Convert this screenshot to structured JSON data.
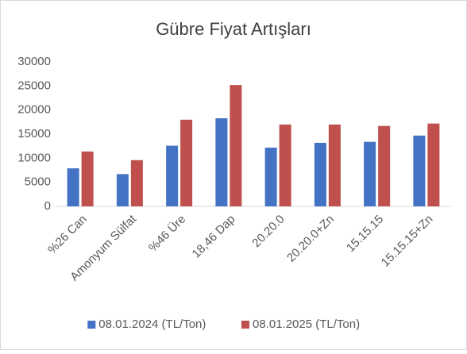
{
  "chart_data": {
    "type": "bar",
    "title": "Gübre Fiyat Artışları",
    "categories": [
      "%26 Can",
      "Amonyum Sülfat",
      "%46 Üre",
      "18,46 Dap",
      "20.20.0",
      "20.20.0+Zn",
      "15.15.15",
      "15.15.15+Zn"
    ],
    "series": [
      {
        "name": "08.01.2024 (TL/Ton)",
        "color": "#4472c4",
        "values": [
          7900,
          6700,
          12600,
          18300,
          12200,
          13200,
          13400,
          14700
        ]
      },
      {
        "name": "08.01.2025 (TL/Ton)",
        "color": "#c0504d",
        "values": [
          11400,
          9600,
          18000,
          25200,
          17000,
          17000,
          16700,
          17200
        ]
      }
    ],
    "ylim": [
      0,
      30000
    ],
    "yticks": [
      0,
      5000,
      10000,
      15000,
      20000,
      25000,
      30000
    ],
    "grid": false,
    "legend": "bottom"
  }
}
